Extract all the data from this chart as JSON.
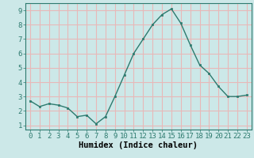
{
  "x": [
    0,
    1,
    2,
    3,
    4,
    5,
    6,
    7,
    8,
    9,
    10,
    11,
    12,
    13,
    14,
    15,
    16,
    17,
    18,
    19,
    20,
    21,
    22,
    23
  ],
  "y": [
    2.7,
    2.3,
    2.5,
    2.4,
    2.2,
    1.6,
    1.7,
    1.1,
    1.6,
    3.0,
    4.5,
    6.0,
    7.0,
    8.0,
    8.7,
    9.1,
    8.1,
    6.6,
    5.2,
    4.6,
    3.7,
    3.0,
    3.0,
    3.1
  ],
  "xlabel": "Humidex (Indice chaleur)",
  "ylim": [
    0.7,
    9.5
  ],
  "xlim": [
    -0.5,
    23.5
  ],
  "yticks": [
    1,
    2,
    3,
    4,
    5,
    6,
    7,
    8,
    9
  ],
  "xticks": [
    0,
    1,
    2,
    3,
    4,
    5,
    6,
    7,
    8,
    9,
    10,
    11,
    12,
    13,
    14,
    15,
    16,
    17,
    18,
    19,
    20,
    21,
    22,
    23
  ],
  "line_color": "#2d7a6e",
  "marker_color": "#2d7a6e",
  "bg_color": "#cce8e8",
  "grid_color": "#e8b8b8",
  "xlabel_fontsize": 7.5,
  "tick_fontsize": 6.5
}
